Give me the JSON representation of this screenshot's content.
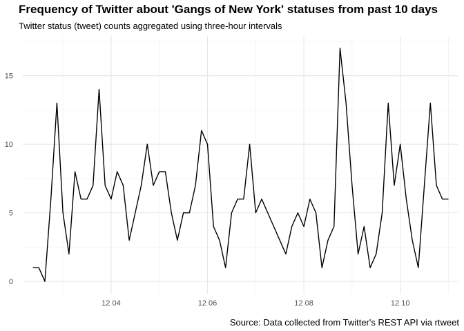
{
  "chart_data": {
    "type": "line",
    "title": "Frequency of Twitter about 'Gangs of New York' statuses from past 10 days",
    "subtitle": "Twitter status (tweet) counts aggregated using three-hour intervals",
    "caption": "Source: Data collected from Twitter's REST API via rtweet",
    "xlabel": "",
    "ylabel": "",
    "grid": true,
    "legend": "none",
    "line_color": "#000000",
    "ylim": [
      -0.9,
      17.9
    ],
    "xlim": [
      "2018-12-02T04:00:00",
      "2018-12-11T05:00:00"
    ],
    "y_ticks": [
      0,
      5,
      10,
      15
    ],
    "x_ticks": [
      {
        "at": "2018-12-04T00:00:00",
        "label": "12 04"
      },
      {
        "at": "2018-12-06T00:00:00",
        "label": "12 06"
      },
      {
        "at": "2018-12-08T00:00:00",
        "label": "12 08"
      },
      {
        "at": "2018-12-10T00:00:00",
        "label": "12 10"
      }
    ],
    "x": [
      "2018-12-02T09:00:00",
      "2018-12-02T12:00:00",
      "2018-12-02T15:00:00",
      "2018-12-02T18:00:00",
      "2018-12-02T21:00:00",
      "2018-12-03T00:00:00",
      "2018-12-03T03:00:00",
      "2018-12-03T06:00:00",
      "2018-12-03T09:00:00",
      "2018-12-03T12:00:00",
      "2018-12-03T15:00:00",
      "2018-12-03T18:00:00",
      "2018-12-03T21:00:00",
      "2018-12-04T00:00:00",
      "2018-12-04T03:00:00",
      "2018-12-04T06:00:00",
      "2018-12-04T09:00:00",
      "2018-12-04T12:00:00",
      "2018-12-04T15:00:00",
      "2018-12-04T18:00:00",
      "2018-12-04T21:00:00",
      "2018-12-05T00:00:00",
      "2018-12-05T03:00:00",
      "2018-12-05T06:00:00",
      "2018-12-05T09:00:00",
      "2018-12-05T12:00:00",
      "2018-12-05T15:00:00",
      "2018-12-05T18:00:00",
      "2018-12-05T21:00:00",
      "2018-12-06T00:00:00",
      "2018-12-06T03:00:00",
      "2018-12-06T06:00:00",
      "2018-12-06T09:00:00",
      "2018-12-06T12:00:00",
      "2018-12-06T15:00:00",
      "2018-12-06T18:00:00",
      "2018-12-06T21:00:00",
      "2018-12-07T00:00:00",
      "2018-12-07T03:00:00",
      "2018-12-07T06:00:00",
      "2018-12-07T09:00:00",
      "2018-12-07T12:00:00",
      "2018-12-07T15:00:00",
      "2018-12-07T18:00:00",
      "2018-12-07T21:00:00",
      "2018-12-08T00:00:00",
      "2018-12-08T03:00:00",
      "2018-12-08T06:00:00",
      "2018-12-08T09:00:00",
      "2018-12-08T12:00:00",
      "2018-12-08T15:00:00",
      "2018-12-08T18:00:00",
      "2018-12-08T21:00:00",
      "2018-12-09T00:00:00",
      "2018-12-09T03:00:00",
      "2018-12-09T06:00:00",
      "2018-12-09T09:00:00",
      "2018-12-09T12:00:00",
      "2018-12-09T15:00:00",
      "2018-12-09T18:00:00",
      "2018-12-09T21:00:00",
      "2018-12-10T00:00:00",
      "2018-12-10T03:00:00",
      "2018-12-10T06:00:00",
      "2018-12-10T09:00:00",
      "2018-12-10T12:00:00",
      "2018-12-10T15:00:00",
      "2018-12-10T18:00:00",
      "2018-12-10T21:00:00",
      "2018-12-11T00:00:00"
    ],
    "values": [
      1,
      1,
      0,
      6,
      13,
      5,
      2,
      8,
      6,
      6,
      7,
      14,
      7,
      6,
      8,
      7,
      3,
      5,
      7,
      10,
      7,
      8,
      8,
      5,
      3,
      5,
      5,
      7,
      11,
      10,
      4,
      3,
      1,
      5,
      6,
      6,
      10,
      5,
      6,
      5,
      4,
      3,
      2,
      4,
      5,
      4,
      6,
      5,
      1,
      3,
      4,
      17,
      13,
      7,
      2,
      4,
      1,
      2,
      5,
      13,
      7,
      10,
      6,
      3,
      1,
      7,
      13,
      7,
      6,
      6
    ]
  }
}
